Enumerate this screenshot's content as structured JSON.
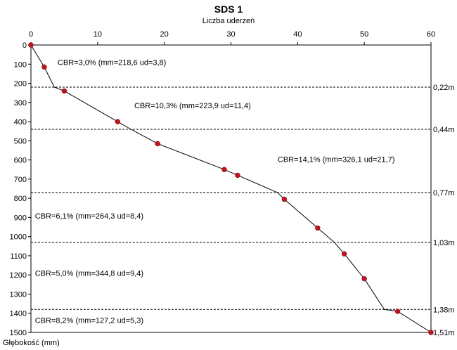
{
  "chart_data": {
    "type": "line",
    "title": "SDS 1",
    "xlabel": "Liczba uderzeń",
    "ylabel": "Głębokość (mm)",
    "xlim": [
      0,
      60
    ],
    "ylim": [
      0,
      1500
    ],
    "x_ticks": [
      0,
      10,
      20,
      30,
      40,
      50,
      60
    ],
    "y_ticks": [
      0,
      100,
      200,
      300,
      400,
      500,
      600,
      700,
      800,
      900,
      1000,
      1100,
      1200,
      1300,
      1400,
      1500
    ],
    "y_inverted": true,
    "x_axis_position": "top",
    "series": [
      {
        "color": "#c0141e",
        "line_color": "#000000",
        "points": [
          {
            "x": 0,
            "y": 0
          },
          {
            "x": 2,
            "y": 115
          },
          {
            "x": 5,
            "y": 240
          },
          {
            "x": 13,
            "y": 400
          },
          {
            "x": 19,
            "y": 515
          },
          {
            "x": 29,
            "y": 650
          },
          {
            "x": 31,
            "y": 680
          },
          {
            "x": 38,
            "y": 805
          },
          {
            "x": 43,
            "y": 955
          },
          {
            "x": 47,
            "y": 1090
          },
          {
            "x": 50,
            "y": 1220
          },
          {
            "x": 55,
            "y": 1390
          },
          {
            "x": 60,
            "y": 1510
          }
        ],
        "line_path": [
          {
            "x": 0,
            "y": 0
          },
          {
            "x": 2,
            "y": 115
          },
          {
            "x": 3.5,
            "y": 220
          },
          {
            "x": 5,
            "y": 240
          },
          {
            "x": 13,
            "y": 400
          },
          {
            "x": 15,
            "y": 440
          },
          {
            "x": 19,
            "y": 515
          },
          {
            "x": 29,
            "y": 650
          },
          {
            "x": 31,
            "y": 680
          },
          {
            "x": 37,
            "y": 770
          },
          {
            "x": 38,
            "y": 805
          },
          {
            "x": 43,
            "y": 955
          },
          {
            "x": 45.5,
            "y": 1030
          },
          {
            "x": 47,
            "y": 1090
          },
          {
            "x": 50,
            "y": 1220
          },
          {
            "x": 53,
            "y": 1380
          },
          {
            "x": 55,
            "y": 1390
          },
          {
            "x": 60,
            "y": 1510
          }
        ]
      }
    ],
    "layer_boundaries": [
      {
        "y": 220,
        "label": "0,22m"
      },
      {
        "y": 440,
        "label": "0,44m"
      },
      {
        "y": 770,
        "label": "0,77m"
      },
      {
        "y": 1030,
        "label": "1,03m"
      },
      {
        "y": 1380,
        "label": "1,38m"
      },
      {
        "y": 1510,
        "label": "1,51m"
      }
    ],
    "annotations": [
      {
        "text": "CBR=3,0%  (mm=218,6 ud=3,8)",
        "x": 4,
        "y": 105
      },
      {
        "text": "CBR=10,3%  (mm=223,9 ud=11,4)",
        "x": 15.5,
        "y": 330
      },
      {
        "text": "CBR=14,1%  (mm=326,1 ud=21,7)",
        "x": 37,
        "y": 610
      },
      {
        "text": "CBR=6,1%  (mm=264,3 ud=8,4)",
        "x": 0.6,
        "y": 905
      },
      {
        "text": "CBR=5,0%  (mm=344,8 ud=9,4)",
        "x": 0.6,
        "y": 1205
      },
      {
        "text": "CBR=8,2%  (mm=127,2 ud=5,3)",
        "x": 0.6,
        "y": 1450
      }
    ],
    "grid": false
  }
}
